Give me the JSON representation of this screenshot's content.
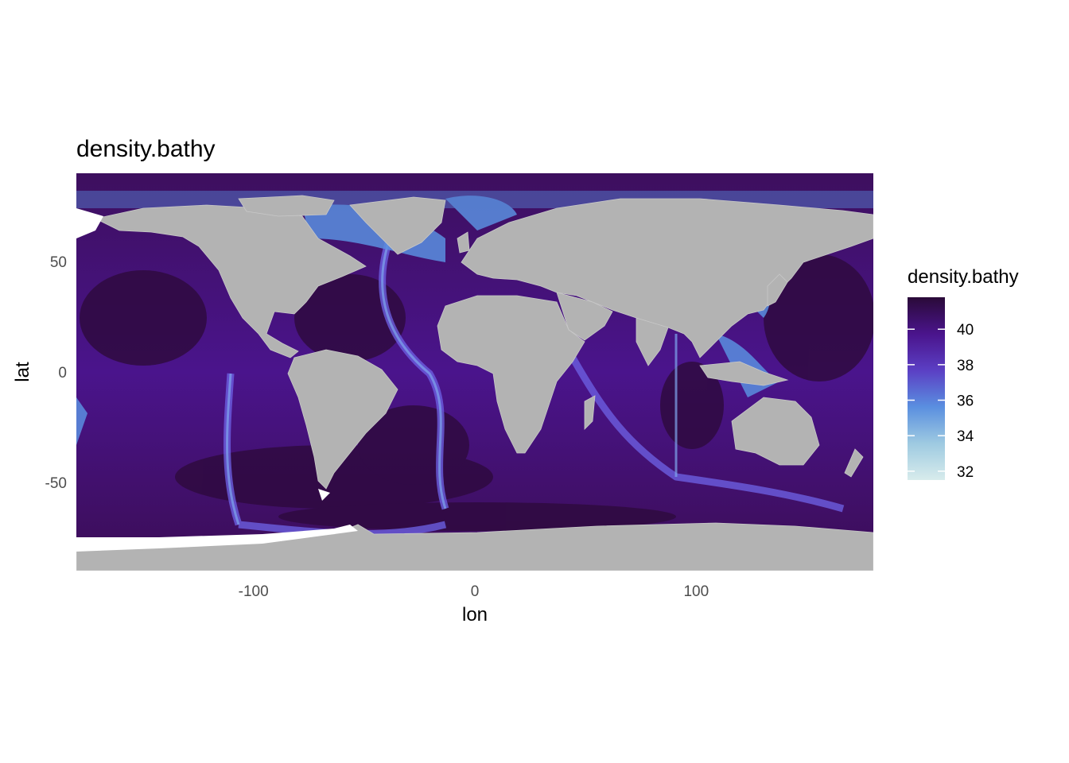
{
  "chart_data": {
    "type": "heatmap",
    "title": "density.bathy",
    "xlabel": "lon",
    "ylabel": "lat",
    "xlim": [
      -180,
      180
    ],
    "ylim": [
      -90,
      90
    ],
    "x_ticks": [
      -100,
      0,
      100
    ],
    "y_ticks": [
      50,
      0,
      -50
    ],
    "x_tick_labels": [
      "-100",
      "0",
      "100"
    ],
    "y_tick_labels": [
      "50",
      "0",
      "-50"
    ],
    "land_color": "#b3b3b3",
    "legend": {
      "title": "density.bathy",
      "min": 31.5,
      "max": 41.8,
      "breaks": [
        40,
        38,
        36,
        34,
        32
      ],
      "break_labels": [
        "40",
        "38",
        "36",
        "34",
        "32"
      ],
      "colors": [
        "#d8ecec",
        "#9ecae1",
        "#5a8fe0",
        "#5b3fc4",
        "#4a148c",
        "#2a0a38"
      ]
    }
  }
}
